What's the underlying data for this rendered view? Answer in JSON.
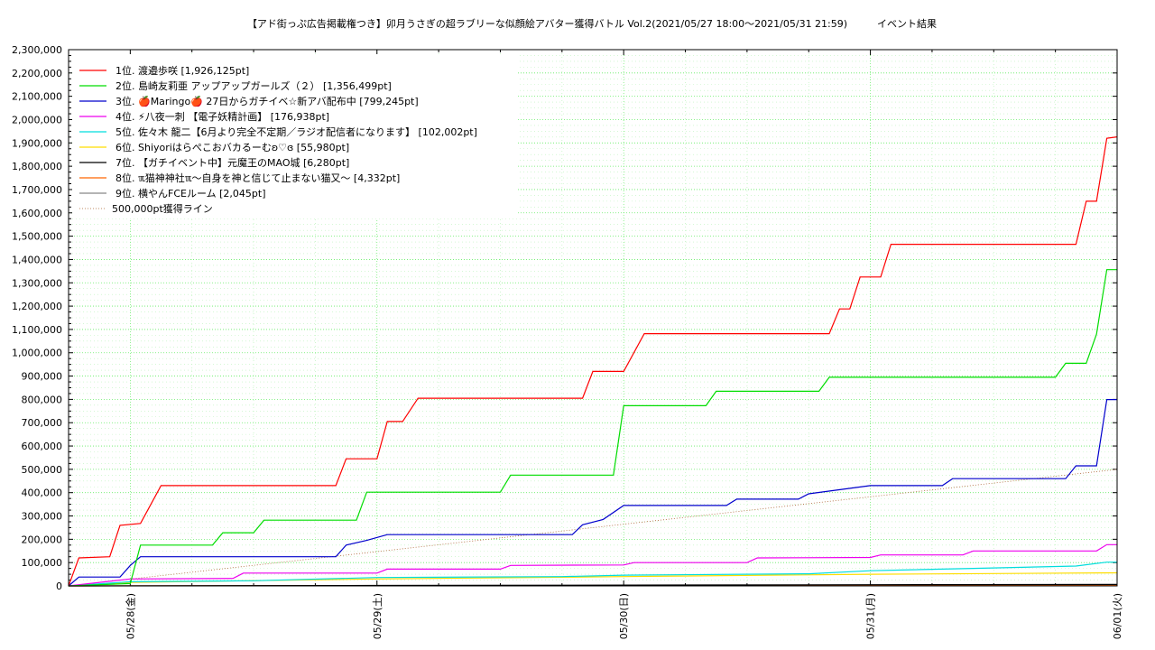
{
  "chart_data": {
    "type": "line",
    "title": "【アド街っぷ広告掲載権つき】卯月うさぎの超ラブリーな似顔絵アバター獲得バトル Vol.2(2021/05/27 18:00〜2021/05/31 21:59)　　　イベント結果",
    "xlabel": "",
    "ylabel": "",
    "x_range": [
      "2021-05-27 18:00",
      "2021-06-01 00:00"
    ],
    "x_ticks": [
      "05/28(金)",
      "05/29(土)",
      "05/30(日)",
      "05/31(月)",
      "06/01(火)"
    ],
    "ylim": [
      0,
      2300000
    ],
    "y_ticks": [
      "0",
      "100,000",
      "200,000",
      "300,000",
      "400,000",
      "500,000",
      "600,000",
      "700,000",
      "800,000",
      "900,000",
      "1,000,000",
      "1,100,000",
      "1,200,000",
      "1,300,000",
      "1,400,000",
      "1,500,000",
      "1,600,000",
      "1,700,000",
      "1,800,000",
      "1,900,000",
      "2,000,000",
      "2,100,000",
      "2,200,000",
      "2,300,000"
    ],
    "grid": true,
    "legend_position": "top-left",
    "series": [
      {
        "name": "1位. 渡邉歩咲 [1,926,125pt]",
        "color": "#ff0000",
        "points": [
          [
            "05/27 18:00",
            0
          ],
          [
            "05/27 19:00",
            120000
          ],
          [
            "05/27 22:00",
            125000
          ],
          [
            "05/27 23:00",
            260000
          ],
          [
            "05/28 01:00",
            268000
          ],
          [
            "05/28 03:00",
            430000
          ],
          [
            "05/28 20:00",
            430000
          ],
          [
            "05/28 21:00",
            545000
          ],
          [
            "05/29 00:00",
            545000
          ],
          [
            "05/29 01:00",
            705000
          ],
          [
            "05/29 02:30",
            705000
          ],
          [
            "05/29 04:00",
            805000
          ],
          [
            "05/29 20:00",
            805000
          ],
          [
            "05/29 21:00",
            920000
          ],
          [
            "05/30 00:00",
            920000
          ],
          [
            "05/30 02:00",
            1082000
          ],
          [
            "05/30 20:00",
            1082000
          ],
          [
            "05/30 21:00",
            1188000
          ],
          [
            "05/30 22:00",
            1188000
          ],
          [
            "05/30 23:00",
            1325000
          ],
          [
            "05/31 01:00",
            1325000
          ],
          [
            "05/31 02:00",
            1465000
          ],
          [
            "05/31 20:00",
            1465000
          ],
          [
            "05/31 21:00",
            1650000
          ],
          [
            "05/31 22:00",
            1650000
          ],
          [
            "05/31 23:00",
            1920000
          ],
          [
            "06/01 00:00",
            1926125
          ]
        ]
      },
      {
        "name": "2位. 島崎友莉亜 アップアップガールズ（２） [1,356,499pt]",
        "color": "#00dd00",
        "points": [
          [
            "05/27 18:00",
            0
          ],
          [
            "05/28 00:00",
            10000
          ],
          [
            "05/28 01:00",
            175000
          ],
          [
            "05/28 08:00",
            175000
          ],
          [
            "05/28 09:00",
            228000
          ],
          [
            "05/28 12:00",
            228000
          ],
          [
            "05/28 13:00",
            282000
          ],
          [
            "05/28 22:00",
            282000
          ],
          [
            "05/28 23:00",
            402000
          ],
          [
            "05/29 12:00",
            402000
          ],
          [
            "05/29 13:00",
            475000
          ],
          [
            "05/29 23:00",
            475000
          ],
          [
            "05/30 00:00",
            773000
          ],
          [
            "05/30 08:00",
            773000
          ],
          [
            "05/30 09:00",
            835000
          ],
          [
            "05/30 19:00",
            835000
          ],
          [
            "05/30 20:00",
            895000
          ],
          [
            "05/31 18:00",
            895000
          ],
          [
            "05/31 19:00",
            955000
          ],
          [
            "05/31 21:00",
            955000
          ],
          [
            "05/31 22:00",
            1080000
          ],
          [
            "05/31 23:00",
            1356499
          ],
          [
            "06/01 00:00",
            1356499
          ]
        ]
      },
      {
        "name": "3位. 🍎Maringo🍎 27日からガチイベ☆新アバ配布中 [799,245pt]",
        "color": "#0000cc",
        "points": [
          [
            "05/27 18:00",
            0
          ],
          [
            "05/27 19:00",
            38000
          ],
          [
            "05/27 23:00",
            38000
          ],
          [
            "05/28 00:00",
            88000
          ],
          [
            "05/28 01:00",
            125000
          ],
          [
            "05/28 20:00",
            125000
          ],
          [
            "05/28 21:00",
            175000
          ],
          [
            "05/28 23:00",
            195000
          ],
          [
            "05/29 01:00",
            220000
          ],
          [
            "05/29 19:00",
            220000
          ],
          [
            "05/29 20:00",
            262000
          ],
          [
            "05/29 22:00",
            285000
          ],
          [
            "05/30 00:00",
            345000
          ],
          [
            "05/30 10:00",
            345000
          ],
          [
            "05/30 11:00",
            372000
          ],
          [
            "05/30 17:00",
            372000
          ],
          [
            "05/30 18:00",
            395000
          ],
          [
            "05/31 00:00",
            430000
          ],
          [
            "05/31 07:00",
            430000
          ],
          [
            "05/31 08:00",
            460000
          ],
          [
            "05/31 19:00",
            460000
          ],
          [
            "05/31 20:00",
            515000
          ],
          [
            "05/31 22:00",
            515000
          ],
          [
            "05/31 23:00",
            799245
          ],
          [
            "06/01 00:00",
            799245
          ]
        ]
      },
      {
        "name": "4位. ⚡八夜一刺 【電子妖精計画】 [176,938pt]",
        "color": "#ee00ee",
        "points": [
          [
            "05/27 18:00",
            0
          ],
          [
            "05/28 00:00",
            30000
          ],
          [
            "05/28 10:00",
            32000
          ],
          [
            "05/28 11:00",
            55000
          ],
          [
            "05/29 00:00",
            55000
          ],
          [
            "05/29 01:00",
            72000
          ],
          [
            "05/29 12:00",
            72000
          ],
          [
            "05/29 13:00",
            88000
          ],
          [
            "05/30 00:00",
            90000
          ],
          [
            "05/30 01:00",
            100000
          ],
          [
            "05/30 12:00",
            100000
          ],
          [
            "05/30 13:00",
            120000
          ],
          [
            "05/31 00:00",
            122000
          ],
          [
            "05/31 01:00",
            133000
          ],
          [
            "05/31 09:00",
            133000
          ],
          [
            "05/31 10:00",
            150000
          ],
          [
            "05/31 22:00",
            150000
          ],
          [
            "05/31 23:00",
            176938
          ],
          [
            "06/01 00:00",
            176938
          ]
        ]
      },
      {
        "name": "5位. 佐々木 龍二【6月より完全不定期／ラジオ配信者になります】 [102,002pt]",
        "color": "#00dddd",
        "points": [
          [
            "05/27 18:00",
            0
          ],
          [
            "05/28 00:00",
            18000
          ],
          [
            "05/28 12:00",
            22000
          ],
          [
            "05/29 00:00",
            36000
          ],
          [
            "05/29 18:00",
            40000
          ],
          [
            "05/30 00:00",
            46000
          ],
          [
            "05/30 18:00",
            52000
          ],
          [
            "05/31 00:00",
            65000
          ],
          [
            "05/31 10:00",
            75000
          ],
          [
            "05/31 20:00",
            85000
          ],
          [
            "05/31 23:00",
            102002
          ],
          [
            "06/01 00:00",
            102002
          ]
        ]
      },
      {
        "name": "6位. Shiyoriはらぺこおバカるーむʚ♡ɞ [55,980pt]",
        "color": "#ffdd00",
        "points": [
          [
            "05/27 18:00",
            0
          ],
          [
            "05/28 00:00",
            15000
          ],
          [
            "05/29 00:00",
            30000
          ],
          [
            "05/30 00:00",
            40000
          ],
          [
            "05/31 00:00",
            50000
          ],
          [
            "06/01 00:00",
            55980
          ]
        ]
      },
      {
        "name": "7位. 【ガチイベント中】元魔王のMAO城 [6,280pt]",
        "color": "#000000",
        "points": [
          [
            "05/27 18:00",
            0
          ],
          [
            "05/29 00:00",
            2000
          ],
          [
            "05/31 00:00",
            5000
          ],
          [
            "06/01 00:00",
            6280
          ]
        ]
      },
      {
        "name": "8位. ℼ猫神神社ℼ〜自身を神と信じて止まない猫又〜 [4,332pt]",
        "color": "#ff6600",
        "points": [
          [
            "05/27 18:00",
            0
          ],
          [
            "05/30 00:00",
            2000
          ],
          [
            "06/01 00:00",
            4332
          ]
        ]
      },
      {
        "name": "9位. 横やんFCEルーム [2,045pt]",
        "color": "#888888",
        "points": [
          [
            "05/27 18:00",
            0
          ],
          [
            "06/01 00:00",
            2045
          ]
        ]
      }
    ],
    "reference_line": {
      "name": "500,000pt獲得ライン",
      "color": "#aa6633",
      "points": [
        [
          "05/27 18:00",
          0
        ],
        [
          "06/01 00:00",
          500000
        ]
      ]
    }
  }
}
